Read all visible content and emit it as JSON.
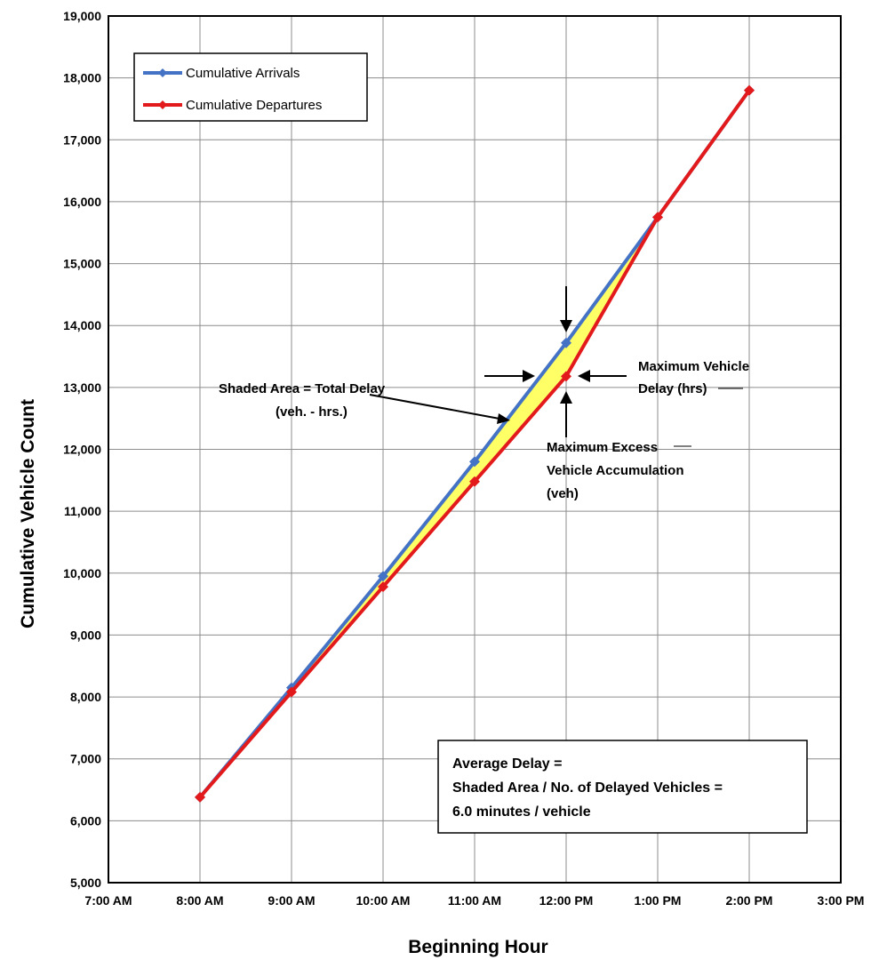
{
  "chart_data": {
    "type": "line",
    "xlabel": "Beginning Hour",
    "ylabel": "Cumulative Vehicle Count",
    "x_ticks": [
      "7:00 AM",
      "8:00 AM",
      "9:00 AM",
      "10:00 AM",
      "11:00 AM",
      "12:00 PM",
      "1:00 PM",
      "2:00 PM",
      "3:00 PM"
    ],
    "y_ticks": [
      "5,000",
      "6,000",
      "7,000",
      "8,000",
      "9,000",
      "10,000",
      "11,000",
      "12,000",
      "13,000",
      "14,000",
      "15,000",
      "16,000",
      "17,000",
      "18,000",
      "19,000"
    ],
    "ylim": [
      5000,
      19000
    ],
    "xlim_hours": [
      7,
      15
    ],
    "grid": true,
    "legend_position": "top-left",
    "series": [
      {
        "name": "Cumulative Arrivals",
        "color": "#4472c4",
        "x": [
          "8:00 AM",
          "9:00 AM",
          "10:00 AM",
          "11:00 AM",
          "12:00 PM",
          "1:00 PM",
          "2:00 PM"
        ],
        "values": [
          6380,
          8150,
          9950,
          11800,
          13720,
          15750,
          17800
        ]
      },
      {
        "name": "Cumulative Departures",
        "color": "#e31a1c",
        "x": [
          "8:00 AM",
          "9:00 AM",
          "10:00 AM",
          "11:00 AM",
          "12:00 PM",
          "1:00 PM",
          "2:00 PM"
        ],
        "values": [
          6380,
          8080,
          9780,
          11480,
          13180,
          15750,
          17800
        ]
      }
    ],
    "shade_color": "#ffff66",
    "annotations": {
      "shaded_area": [
        "Shaded Area = Total Delay",
        "(veh. - hrs.)"
      ],
      "max_delay": [
        "Maximum Vehicle",
        "Delay (hrs)"
      ],
      "max_excess": [
        "Maximum Excess",
        "Vehicle Accumulation",
        "(veh)"
      ],
      "average_box": [
        "Average Delay =",
        "Shaded Area / No. of Delayed Vehicles =",
        "6.0 minutes / vehicle"
      ]
    }
  }
}
